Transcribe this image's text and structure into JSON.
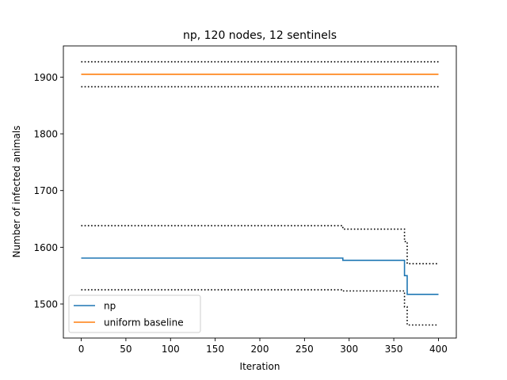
{
  "chart_data": {
    "type": "line",
    "title": "np, 120 nodes, 12 sentinels",
    "xlabel": "Iteration",
    "ylabel": "Number of infected animals",
    "xlim": [
      -20,
      420
    ],
    "ylim": [
      1440,
      1955
    ],
    "xticks": [
      0,
      50,
      100,
      150,
      200,
      250,
      300,
      350,
      400
    ],
    "yticks": [
      1500,
      1600,
      1700,
      1800,
      1900
    ],
    "grid": false,
    "legend": {
      "placement": "lower-left",
      "entries": [
        "np",
        "uniform baseline"
      ]
    },
    "series": [
      {
        "name": "np",
        "color": "#1f77b4",
        "style": "solid",
        "points": [
          [
            0,
            1581
          ],
          [
            293,
            1581
          ],
          [
            293,
            1577
          ],
          [
            362,
            1577
          ],
          [
            362,
            1550
          ],
          [
            365,
            1550
          ],
          [
            365,
            1517
          ],
          [
            400,
            1517
          ]
        ]
      },
      {
        "name": "uniform baseline",
        "color": "#ff7f0e",
        "style": "solid",
        "points": [
          [
            0,
            1905
          ],
          [
            400,
            1905
          ]
        ]
      }
    ],
    "bands": [
      {
        "color": "#000000",
        "style": "dotted",
        "points": [
          [
            0,
            1927
          ],
          [
            400,
            1927
          ]
        ]
      },
      {
        "color": "#000000",
        "style": "dotted",
        "points": [
          [
            0,
            1883
          ],
          [
            400,
            1883
          ]
        ]
      },
      {
        "color": "#000000",
        "style": "dotted",
        "points": [
          [
            0,
            1638
          ],
          [
            293,
            1638
          ],
          [
            293,
            1632
          ],
          [
            362,
            1632
          ],
          [
            362,
            1610
          ],
          [
            365,
            1610
          ],
          [
            365,
            1571
          ],
          [
            400,
            1571
          ]
        ]
      },
      {
        "color": "#000000",
        "style": "dotted",
        "points": [
          [
            0,
            1525
          ],
          [
            293,
            1525
          ],
          [
            293,
            1523
          ],
          [
            362,
            1523
          ],
          [
            362,
            1495
          ],
          [
            365,
            1495
          ],
          [
            365,
            1463
          ],
          [
            400,
            1463
          ]
        ]
      }
    ]
  }
}
